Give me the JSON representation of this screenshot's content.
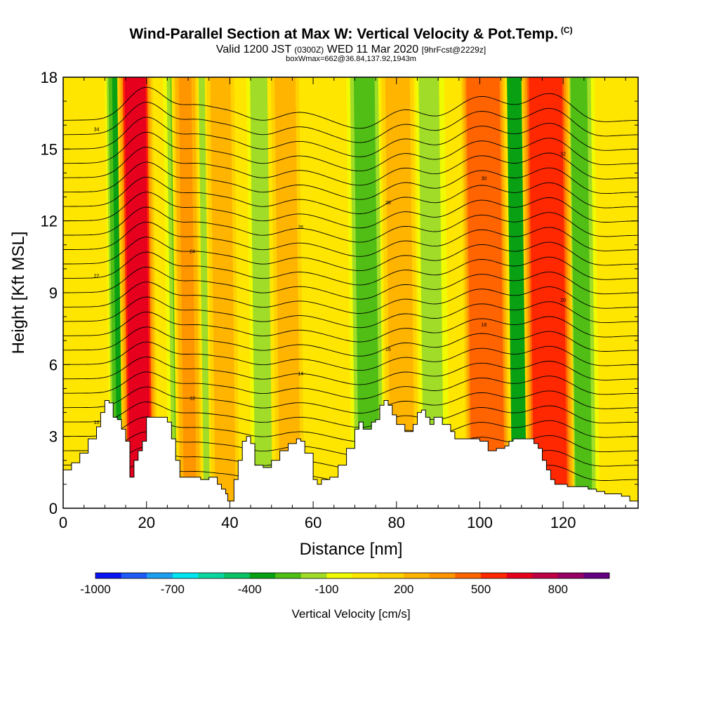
{
  "header": {
    "title": "Wind-Parallel Section at Max W: Vertical Velocity & Pot.Temp.",
    "copyright": "(C)",
    "valid_prefix": "Valid 1200 JST",
    "valid_utc": "(0300Z)",
    "valid_date": "WED 11 Mar 2020",
    "forecast": "[9hrFcst@2229z]",
    "box_info": "boxWmax=662@36.84,137.92,1943m"
  },
  "chart_data": {
    "type": "heatmap",
    "xlabel": "Distance [nm]",
    "ylabel": "Height [Kft MSL]",
    "xlim": [
      0,
      138
    ],
    "ylim": [
      0,
      18
    ],
    "x_ticks": [
      0,
      20,
      40,
      60,
      80,
      100,
      120
    ],
    "y_ticks": [
      0,
      3,
      6,
      9,
      12,
      15,
      18
    ],
    "colorbar": {
      "title": "Vertical Velocity [cm/s]",
      "labels": [
        "-1000",
        "-700",
        "-400",
        "-100",
        "200",
        "500",
        "800"
      ],
      "label_values": [
        -1000,
        -700,
        -400,
        -100,
        200,
        500,
        800
      ],
      "levels": [
        -1000,
        -900,
        -800,
        -700,
        -600,
        -500,
        -400,
        -300,
        -200,
        -100,
        0,
        100,
        200,
        300,
        400,
        500,
        600,
        700,
        800,
        900
      ],
      "colors": [
        "#0a14f0",
        "#1e5af5",
        "#1ea0f0",
        "#00e6f0",
        "#0ad7a0",
        "#0ac364",
        "#0aa014",
        "#50be14",
        "#a0dc28",
        "#f0fa00",
        "#ffe600",
        "#ffd200",
        "#ffb400",
        "#ff9600",
        "#ff6400",
        "#ff2800",
        "#e6001e",
        "#be0046",
        "#960064",
        "#640082"
      ]
    },
    "updraft_bands": [
      {
        "x_low": 16,
        "x_high": 21,
        "strength": 650
      },
      {
        "x_low": 29,
        "x_high": 32,
        "strength": 350
      },
      {
        "x_low": 37,
        "x_high": 41,
        "strength": 250
      },
      {
        "x_low": 52,
        "x_high": 57,
        "strength": 200
      },
      {
        "x_low": 79,
        "x_high": 84,
        "strength": 250
      },
      {
        "x_low": 98,
        "x_high": 106,
        "strength": 450
      },
      {
        "x_low": 113,
        "x_high": 121,
        "strength": 500
      }
    ],
    "downdraft_bands": [
      {
        "x_low": 13,
        "x_high": 16,
        "strength": -350
      },
      {
        "x_low": 27,
        "x_high": 29,
        "strength": -250
      },
      {
        "x_low": 34,
        "x_high": 38,
        "strength": -200
      },
      {
        "x_low": 47,
        "x_high": 52,
        "strength": -200
      },
      {
        "x_low": 71,
        "x_high": 76,
        "strength": -250
      },
      {
        "x_low": 87,
        "x_high": 91,
        "strength": -150
      },
      {
        "x_low": 106,
        "x_high": 111,
        "strength": -400
      },
      {
        "x_low": 123,
        "x_high": 127,
        "strength": -250
      }
    ],
    "terrain": [
      [
        0,
        1.6
      ],
      [
        2,
        1.9
      ],
      [
        4,
        2.3
      ],
      [
        6,
        2.9
      ],
      [
        8,
        3.4
      ],
      [
        9,
        4.0
      ],
      [
        10,
        4.5
      ],
      [
        11,
        4.4
      ],
      [
        12,
        3.8
      ],
      [
        13,
        3.7
      ],
      [
        14,
        3.3
      ],
      [
        15,
        2.8
      ],
      [
        16,
        1.3
      ],
      [
        17,
        2.0
      ],
      [
        18,
        2.4
      ],
      [
        19,
        2.8
      ],
      [
        20,
        3.8
      ],
      [
        24,
        3.8
      ],
      [
        25,
        3.6
      ],
      [
        26,
        2.9
      ],
      [
        27,
        2.0
      ],
      [
        28,
        1.3
      ],
      [
        33,
        1.2
      ],
      [
        35,
        1.3
      ],
      [
        37,
        1.0
      ],
      [
        38,
        0.8
      ],
      [
        39,
        0.6
      ],
      [
        39.5,
        0.3
      ],
      [
        40,
        0.3
      ],
      [
        41,
        1.2
      ],
      [
        42,
        2.0
      ],
      [
        43,
        2.8
      ],
      [
        44,
        3.0
      ],
      [
        45,
        2.7
      ],
      [
        46,
        1.8
      ],
      [
        48,
        1.7
      ],
      [
        50,
        2.0
      ],
      [
        52,
        2.4
      ],
      [
        54,
        2.7
      ],
      [
        56,
        2.9
      ],
      [
        57,
        2.8
      ],
      [
        58,
        2.3
      ],
      [
        60,
        1.2
      ],
      [
        61,
        1.0
      ],
      [
        62,
        1.2
      ],
      [
        64,
        1.3
      ],
      [
        66,
        1.8
      ],
      [
        68,
        2.5
      ],
      [
        70,
        3.3
      ],
      [
        71,
        3.6
      ],
      [
        72,
        3.3
      ],
      [
        73,
        3.3
      ],
      [
        74,
        3.6
      ],
      [
        75,
        3.7
      ],
      [
        76,
        4.3
      ],
      [
        77,
        4.5
      ],
      [
        78,
        4.3
      ],
      [
        79,
        3.9
      ],
      [
        80,
        3.5
      ],
      [
        82,
        3.2
      ],
      [
        84,
        3.5
      ],
      [
        85,
        4.0
      ],
      [
        86,
        4.1
      ],
      [
        87,
        3.8
      ],
      [
        88,
        3.5
      ],
      [
        89,
        3.8
      ],
      [
        90,
        3.8
      ],
      [
        91,
        3.5
      ],
      [
        93,
        3.2
      ],
      [
        94,
        2.9
      ],
      [
        100,
        2.8
      ],
      [
        102,
        2.4
      ],
      [
        104,
        2.5
      ],
      [
        106,
        2.6
      ],
      [
        107,
        2.8
      ],
      [
        108,
        2.9
      ],
      [
        112,
        2.9
      ],
      [
        113,
        2.7
      ],
      [
        114,
        2.5
      ],
      [
        115,
        2.0
      ],
      [
        116,
        1.6
      ],
      [
        117,
        1.2
      ],
      [
        118,
        1.0
      ],
      [
        119,
        1.0
      ],
      [
        121,
        0.9
      ],
      [
        124,
        0.9
      ],
      [
        126,
        0.8
      ],
      [
        128,
        0.7
      ],
      [
        130,
        0.6
      ],
      [
        134,
        0.5
      ],
      [
        136,
        0.3
      ],
      [
        138,
        0.3
      ]
    ],
    "isentropes": {
      "count": 26,
      "base_height": 1.2,
      "spacing": 0.6,
      "labels": [
        "10",
        "12",
        "14",
        "16",
        "18",
        "20",
        "22",
        "24",
        "26",
        "28",
        "30",
        "32",
        "34"
      ]
    }
  }
}
